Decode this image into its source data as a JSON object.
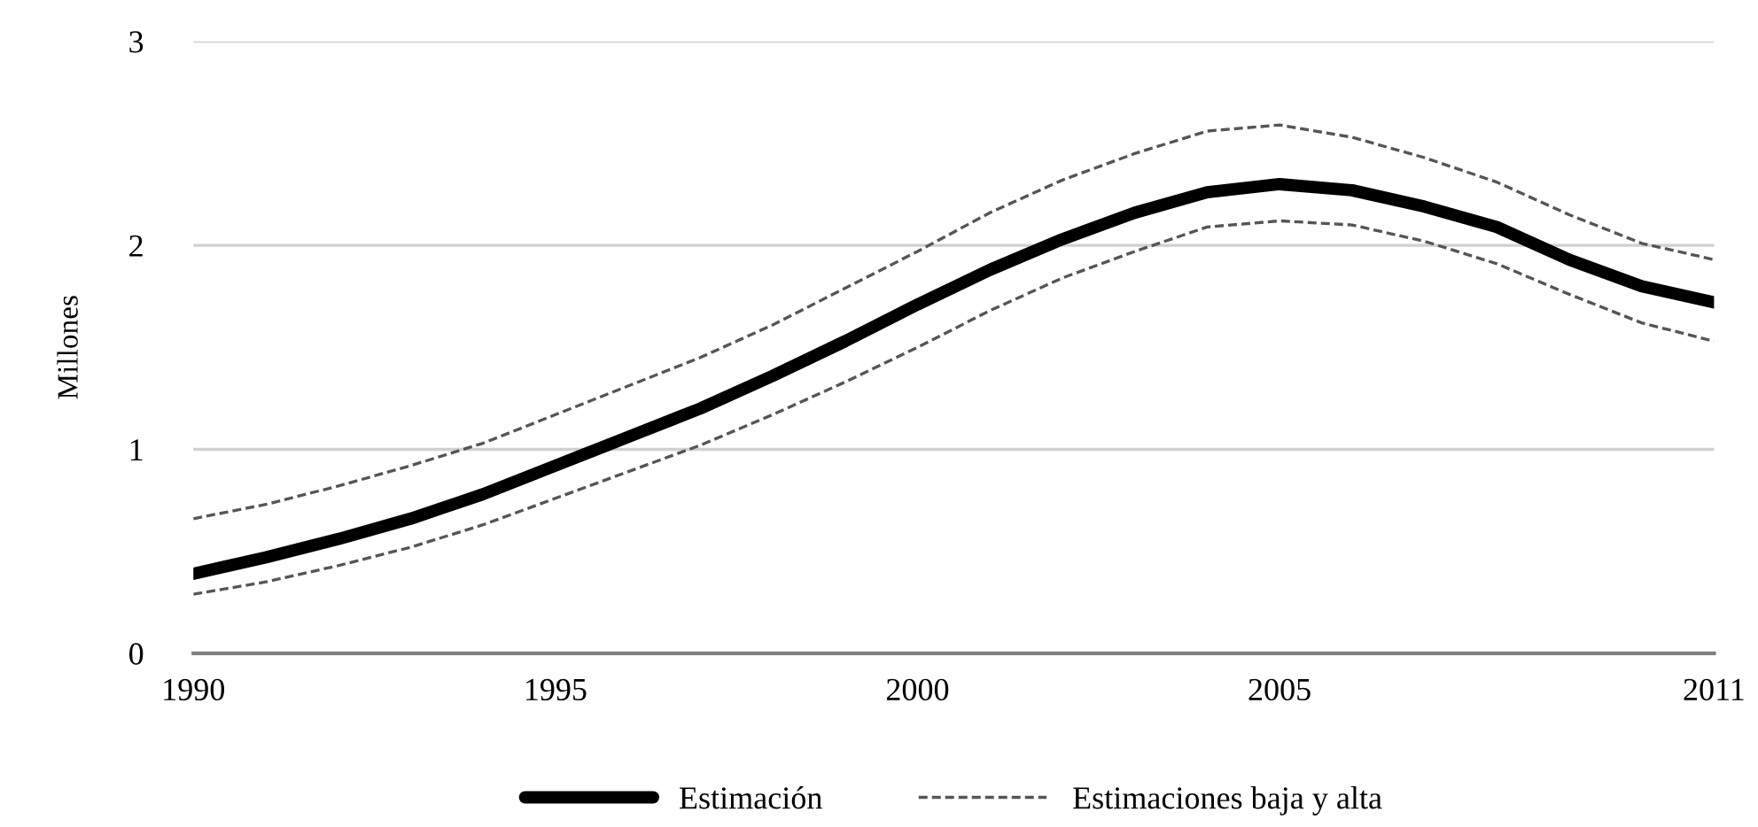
{
  "chart_data": {
    "type": "line",
    "ylabel": "Millones",
    "x": [
      1990,
      1991,
      1992,
      1993,
      1994,
      1995,
      1996,
      1997,
      1998,
      1999,
      2000,
      2001,
      2002,
      2003,
      2004,
      2005,
      2006,
      2007,
      2008,
      2009,
      2010,
      2011
    ],
    "series": [
      {
        "name": "Estimación",
        "color": "#000000",
        "line_style": "solid",
        "values": [
          0.39,
          0.47,
          0.56,
          0.66,
          0.78,
          0.92,
          1.06,
          1.2,
          1.36,
          1.53,
          1.71,
          1.88,
          2.03,
          2.16,
          2.26,
          2.3,
          2.27,
          2.19,
          2.09,
          1.93,
          1.8,
          1.72
        ]
      },
      {
        "name": "Estimaciones baja y alta",
        "color": "#555555",
        "line_style": "dashed",
        "values": [
          0.29,
          0.35,
          0.43,
          0.52,
          0.63,
          0.76,
          0.89,
          1.02,
          1.17,
          1.33,
          1.5,
          1.68,
          1.84,
          1.97,
          2.09,
          2.12,
          2.1,
          2.02,
          1.91,
          1.76,
          1.62,
          1.53
        ]
      },
      {
        "color": "#555555",
        "line_style": "dashed",
        "values": [
          0.66,
          0.73,
          0.82,
          0.92,
          1.03,
          1.17,
          1.31,
          1.45,
          1.61,
          1.79,
          1.97,
          2.16,
          2.32,
          2.45,
          2.56,
          2.59,
          2.53,
          2.43,
          2.31,
          2.15,
          2.01,
          1.93
        ]
      }
    ],
    "xlim": [
      1990,
      2011
    ],
    "xticks": [
      1990,
      1995,
      2000,
      2005,
      2011
    ],
    "ylim": [
      0,
      3
    ],
    "yticks": [
      0,
      1,
      2,
      3
    ],
    "grid": "y",
    "legend": "bottom",
    "marker": "none"
  }
}
